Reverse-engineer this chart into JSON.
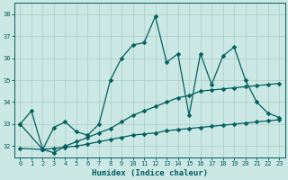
{
  "xlabel": "Humidex (Indice chaleur)",
  "xlim": [
    -0.5,
    23.5
  ],
  "ylim": [
    31.5,
    38.5
  ],
  "yticks": [
    32,
    33,
    34,
    35,
    36,
    37,
    38
  ],
  "xticks": [
    0,
    1,
    2,
    3,
    4,
    5,
    6,
    7,
    8,
    9,
    10,
    11,
    12,
    13,
    14,
    15,
    16,
    17,
    18,
    19,
    20,
    21,
    22,
    23
  ],
  "bg_color": "#cce8e4",
  "grid_color": "#aaccc8",
  "line_color": "#005f5f",
  "line1_x": [
    0,
    1,
    2,
    3,
    4,
    5,
    6,
    7,
    8,
    9,
    10,
    11,
    12,
    13,
    14,
    15,
    16,
    17,
    18,
    19,
    20,
    21,
    22,
    23
  ],
  "line1_y": [
    33.0,
    33.6,
    31.85,
    32.85,
    33.1,
    32.65,
    32.5,
    33.0,
    35.0,
    36.0,
    36.6,
    36.7,
    37.9,
    35.8,
    36.2,
    33.4,
    36.2,
    34.8,
    36.1,
    36.5,
    35.0,
    34.0,
    33.5,
    33.3
  ],
  "line2_x": [
    0,
    2,
    3,
    4,
    5,
    6,
    7,
    8,
    9,
    10,
    11,
    12,
    13,
    14,
    15,
    16,
    17,
    18,
    19,
    20,
    21,
    22,
    23
  ],
  "line2_y": [
    33.0,
    31.85,
    31.7,
    32.0,
    32.2,
    32.4,
    32.6,
    32.8,
    33.1,
    33.4,
    33.6,
    33.8,
    34.0,
    34.2,
    34.3,
    34.5,
    34.55,
    34.6,
    34.65,
    34.7,
    34.75,
    34.8,
    34.85
  ],
  "line3_x": [
    0,
    2,
    3,
    4,
    5,
    6,
    7,
    8,
    9,
    10,
    11,
    12,
    13,
    14,
    15,
    16,
    17,
    18,
    19,
    20,
    21,
    22,
    23
  ],
  "line3_y": [
    31.9,
    31.85,
    31.9,
    31.95,
    32.0,
    32.1,
    32.2,
    32.3,
    32.4,
    32.5,
    32.55,
    32.6,
    32.7,
    32.75,
    32.8,
    32.85,
    32.9,
    32.95,
    33.0,
    33.05,
    33.1,
    33.15,
    33.2
  ]
}
